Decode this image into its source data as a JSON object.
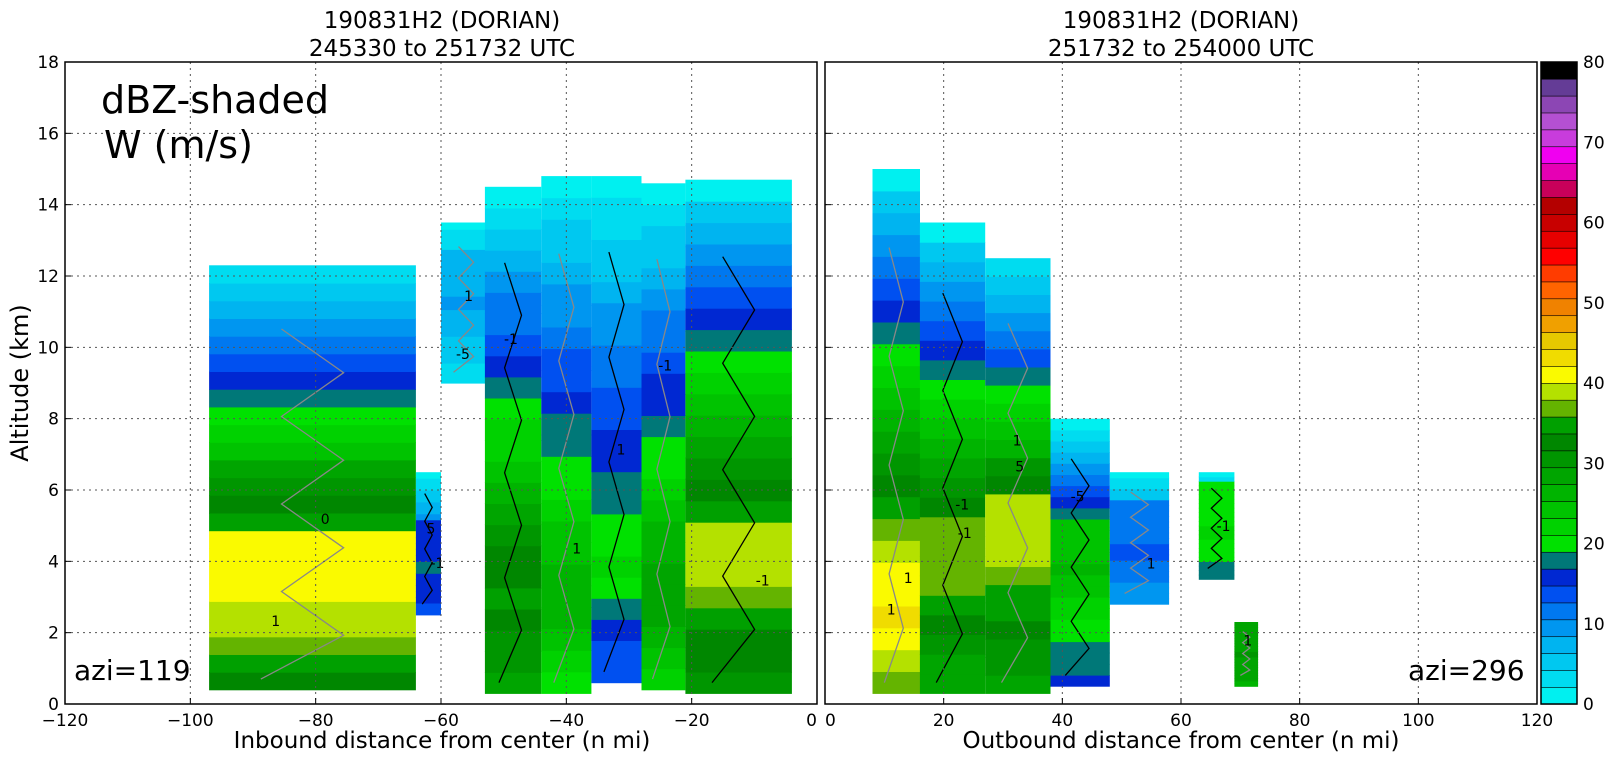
{
  "chart_data": [
    {
      "type": "heatmap",
      "title": [
        "190831H2 (DORIAN)",
        "245330 to 251732 UTC"
      ],
      "annotation": [
        "dBZ-shaded",
        "W (m/s)"
      ],
      "azimuth_label": "azi=119",
      "xlabel": "Inbound distance from center (n mi)",
      "ylabel": "Altitude (km)",
      "xlim": [
        -120,
        0
      ],
      "ylim": [
        0,
        18
      ],
      "xticks": [
        "−120",
        "−100",
        "−80",
        "−60",
        "−40",
        "−20",
        "0"
      ],
      "xtick_values": [
        -120,
        -100,
        -80,
        -60,
        -40,
        -20,
        0
      ],
      "yticks": [
        "0",
        "2",
        "4",
        "6",
        "8",
        "10",
        "12",
        "14",
        "16",
        "18"
      ],
      "ytick_values": [
        0,
        2,
        4,
        6,
        8,
        10,
        12,
        14,
        16,
        18
      ],
      "grid": true,
      "echo_columns": [
        {
          "x0": -97,
          "x1": -64,
          "bottom": 0.4,
          "top": 12.3,
          "peak_dbz": 42,
          "peak_alt": 3.5
        },
        {
          "x0": -64,
          "x1": -60,
          "bottom": 2.5,
          "top": 6.5,
          "peak_dbz": 18,
          "peak_alt": 4
        },
        {
          "x0": -60,
          "x1": -52,
          "bottom": 9.0,
          "top": 13.5,
          "peak_dbz": 10,
          "peak_alt": 11.5
        },
        {
          "x0": -53,
          "x1": -44,
          "bottom": 0.3,
          "top": 14.5,
          "peak_dbz": 35,
          "peak_alt": 3
        },
        {
          "x0": -44,
          "x1": -36,
          "bottom": 0.3,
          "top": 14.8,
          "peak_dbz": 28,
          "peak_alt": 3
        },
        {
          "x0": -36,
          "x1": -28,
          "bottom": 0.6,
          "top": 14.8,
          "peak_dbz": 22,
          "peak_alt": 4
        },
        {
          "x0": -28,
          "x1": -21,
          "bottom": 0.4,
          "top": 14.6,
          "peak_dbz": 30,
          "peak_alt": 3
        },
        {
          "x0": -21,
          "x1": -4,
          "bottom": 0.3,
          "top": 14.7,
          "peak_dbz": 40,
          "peak_alt": 4
        }
      ],
      "w_contour_labels": [
        "1",
        "-1",
        "1",
        "-1",
        "1",
        "1",
        "-1",
        "-1",
        "0",
        "5",
        "-5"
      ]
    },
    {
      "type": "heatmap",
      "title": [
        "190831H2 (DORIAN)",
        "251732 to 254000 UTC"
      ],
      "azimuth_label": "azi=296",
      "xlabel": "Outbound distance from center (n mi)",
      "ylabel": "",
      "xlim": [
        0,
        120
      ],
      "ylim": [
        0,
        18
      ],
      "xticks": [
        "0",
        "20",
        "40",
        "60",
        "80",
        "100",
        "120"
      ],
      "xtick_values": [
        0,
        20,
        40,
        60,
        80,
        100,
        120
      ],
      "grid": true,
      "echo_columns": [
        {
          "x0": 8,
          "x1": 16,
          "bottom": 0.3,
          "top": 15.0,
          "peak_dbz": 44,
          "peak_alt": 2.8
        },
        {
          "x0": 16,
          "x1": 27,
          "bottom": 0.3,
          "top": 13.5,
          "peak_dbz": 38,
          "peak_alt": 4
        },
        {
          "x0": 27,
          "x1": 38,
          "bottom": 0.3,
          "top": 12.5,
          "peak_dbz": 40,
          "peak_alt": 4.5
        },
        {
          "x0": 38,
          "x1": 48,
          "bottom": 0.5,
          "top": 8.0,
          "peak_dbz": 26,
          "peak_alt": 4
        },
        {
          "x0": 48,
          "x1": 58,
          "bottom": 2.8,
          "top": 6.5,
          "peak_dbz": 14,
          "peak_alt": 4.5
        },
        {
          "x0": 63,
          "x1": 69,
          "bottom": 3.5,
          "top": 6.5,
          "peak_dbz": 22,
          "peak_alt": 5
        },
        {
          "x0": 69,
          "x1": 73,
          "bottom": 0.5,
          "top": 2.3,
          "peak_dbz": 30,
          "peak_alt": 1.5
        }
      ],
      "w_contour_labels": [
        "1",
        "-1",
        "5",
        "-5",
        "1",
        "-1",
        "1",
        "1",
        "-1",
        "1"
      ]
    }
  ],
  "colorbar": {
    "min": 0,
    "max": 80,
    "tick_labels": [
      "0",
      "10",
      "20",
      "30",
      "40",
      "50",
      "60",
      "70",
      "80"
    ],
    "tick_values": [
      0,
      10,
      20,
      30,
      40,
      50,
      60,
      70,
      80
    ],
    "colors": [
      "#00f0f0",
      "#00dcf0",
      "#00c8f0",
      "#00b4f0",
      "#0096f0",
      "#0078f0",
      "#0050f0",
      "#0028d2",
      "#007878",
      "#00e100",
      "#00d200",
      "#00c300",
      "#00b400",
      "#00a500",
      "#009600",
      "#008700",
      "#00a000",
      "#64b400",
      "#b4e100",
      "#fafa00",
      "#f0dc00",
      "#e6c800",
      "#f0a000",
      "#f08200",
      "#ff6400",
      "#ff3c00",
      "#ff0000",
      "#e60000",
      "#c80000",
      "#b40000",
      "#c8005a",
      "#e600b4",
      "#f000f0",
      "#c83cdc",
      "#b450d2",
      "#8c46b4",
      "#643c96",
      "#000000"
    ]
  }
}
